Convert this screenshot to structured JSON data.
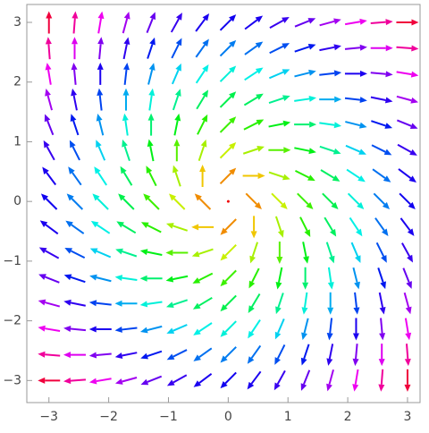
{
  "chart_data": {
    "type": "vector",
    "x": [
      -3,
      -2.57,
      -2.14,
      -1.71,
      -1.29,
      -0.86,
      -0.43,
      0,
      0.43,
      0.86,
      1.29,
      1.71,
      2.14,
      2.57,
      3
    ],
    "y": [
      -3,
      -2.57,
      -2.14,
      -1.71,
      -1.29,
      -0.86,
      -0.43,
      0,
      0.43,
      0.86,
      1.29,
      1.71,
      2.14,
      2.57,
      3
    ],
    "u": [
      [
        -6,
        -5.57,
        -5.14,
        -4.71,
        -4.29,
        -3.86,
        -3.43,
        -3,
        -2.57,
        -2.14,
        -1.71,
        -1.29,
        -0.86,
        -0.43,
        0
      ],
      [
        -5.57,
        -5.14,
        -4.71,
        -4.29,
        -3.86,
        -3.43,
        -3,
        -2.57,
        -2.14,
        -1.71,
        -1.29,
        -0.86,
        -0.43,
        0,
        0.43
      ],
      [
        -5.14,
        -4.71,
        -4.29,
        -3.86,
        -3.43,
        -3,
        -2.57,
        -2.14,
        -1.71,
        -1.29,
        -0.86,
        -0.43,
        0,
        0.43,
        0.86
      ],
      [
        -4.71,
        -4.29,
        -3.86,
        -3.43,
        -3,
        -2.57,
        -2.14,
        -1.71,
        -1.29,
        -0.86,
        -0.43,
        0,
        0.43,
        0.86,
        1.29
      ],
      [
        -4.29,
        -3.86,
        -3.43,
        -3,
        -2.57,
        -2.14,
        -1.71,
        -1.29,
        -0.86,
        -0.43,
        0,
        0.43,
        0.86,
        1.29,
        1.71
      ],
      [
        -3.86,
        -3.43,
        -3,
        -2.57,
        -2.14,
        -1.71,
        -1.29,
        -0.86,
        -0.43,
        0,
        0.43,
        0.86,
        1.29,
        1.71,
        2.14
      ],
      [
        -3.43,
        -3,
        -2.57,
        -2.14,
        -1.71,
        -1.29,
        -0.86,
        -0.43,
        0,
        0.43,
        0.86,
        1.29,
        1.71,
        2.14,
        2.57
      ],
      [
        -3,
        -2.57,
        -2.14,
        -1.71,
        -1.29,
        -0.86,
        -0.43,
        0,
        0.43,
        0.86,
        1.29,
        1.71,
        2.14,
        2.57,
        3
      ],
      [
        -2.57,
        -2.14,
        -1.71,
        -1.29,
        -0.86,
        -0.43,
        0,
        0.43,
        0.86,
        1.29,
        1.71,
        2.14,
        2.57,
        3,
        3.43
      ],
      [
        -2.14,
        -1.71,
        -1.29,
        -0.86,
        -0.43,
        0,
        0.43,
        0.86,
        1.29,
        1.71,
        2.14,
        2.57,
        3,
        3.43,
        3.86
      ],
      [
        -1.71,
        -1.29,
        -0.86,
        -0.43,
        0,
        0.43,
        0.86,
        1.29,
        1.71,
        2.14,
        2.57,
        3,
        3.43,
        3.86,
        4.29
      ],
      [
        -1.29,
        -0.86,
        -0.43,
        0,
        0.43,
        0.86,
        1.29,
        1.71,
        2.14,
        2.57,
        3,
        3.43,
        3.86,
        4.29,
        4.71
      ],
      [
        -0.86,
        -0.43,
        0,
        0.43,
        0.86,
        1.29,
        1.71,
        2.14,
        2.57,
        3,
        3.43,
        3.86,
        4.29,
        4.71,
        5.14
      ],
      [
        -0.43,
        0,
        0.43,
        0.86,
        1.29,
        1.71,
        2.14,
        2.57,
        3,
        3.43,
        3.86,
        4.29,
        4.71,
        5.14,
        5.57
      ],
      [
        0,
        0.43,
        0.86,
        1.29,
        1.71,
        2.14,
        2.57,
        3,
        3.43,
        3.86,
        4.29,
        4.71,
        5.14,
        5.57,
        6
      ]
    ],
    "v": [
      [
        0,
        -0.43,
        -0.86,
        -1.29,
        -1.71,
        -2.14,
        -2.57,
        -3,
        -3.43,
        -3.86,
        -4.29,
        -4.71,
        -5.14,
        -5.57,
        -6
      ],
      [
        0.43,
        0,
        -0.43,
        -0.86,
        -1.29,
        -1.71,
        -2.14,
        -2.57,
        -3,
        -3.43,
        -3.86,
        -4.29,
        -4.71,
        -5.14,
        -5.57
      ],
      [
        0.86,
        0.43,
        0,
        -0.43,
        -0.86,
        -1.29,
        -1.71,
        -2.14,
        -2.57,
        -3,
        -3.43,
        -3.86,
        -4.29,
        -4.71,
        -5.14
      ],
      [
        1.29,
        0.86,
        0.43,
        0,
        -0.43,
        -0.86,
        -1.29,
        -1.71,
        -2.14,
        -2.57,
        -3,
        -3.43,
        -3.86,
        -4.29,
        -4.71
      ],
      [
        1.71,
        1.29,
        0.86,
        0.43,
        0,
        -0.43,
        -0.86,
        -1.29,
        -1.71,
        -2.14,
        -2.57,
        -3,
        -3.43,
        -3.86,
        -4.29
      ],
      [
        2.14,
        1.71,
        1.29,
        0.86,
        0.43,
        0,
        -0.43,
        -0.86,
        -1.29,
        -1.71,
        -2.14,
        -2.57,
        -3,
        -3.43,
        -3.86
      ],
      [
        2.57,
        2.14,
        1.71,
        1.29,
        0.86,
        0.43,
        0,
        -0.43,
        -0.86,
        -1.29,
        -1.71,
        -2.14,
        -2.57,
        -3,
        -3.43
      ],
      [
        3,
        2.57,
        2.14,
        1.71,
        1.29,
        0.86,
        0.43,
        0,
        -0.43,
        -0.86,
        -1.29,
        -1.71,
        -2.14,
        -2.57,
        -3
      ],
      [
        3.43,
        3,
        2.57,
        2.14,
        1.71,
        1.29,
        0.86,
        0.43,
        0,
        -0.43,
        -0.86,
        -1.29,
        -1.71,
        -2.14,
        -2.57
      ],
      [
        3.86,
        3.43,
        3,
        2.57,
        2.14,
        1.71,
        1.29,
        0.86,
        0.43,
        0,
        -0.43,
        -0.86,
        -1.29,
        -1.71,
        -2.14
      ],
      [
        4.29,
        3.86,
        3.43,
        3,
        2.57,
        2.14,
        1.71,
        1.29,
        0.86,
        0.43,
        0,
        -0.43,
        -0.86,
        -1.29,
        -1.71
      ],
      [
        4.71,
        4.29,
        3.86,
        3.43,
        3,
        2.57,
        2.14,
        1.71,
        1.29,
        0.86,
        0.43,
        0,
        -0.43,
        -0.86,
        -1.29
      ],
      [
        5.14,
        4.71,
        4.29,
        3.86,
        3.43,
        3,
        2.57,
        2.14,
        1.71,
        1.29,
        0.86,
        0.43,
        0,
        -0.43,
        -0.86
      ],
      [
        5.57,
        5.14,
        4.71,
        4.29,
        3.86,
        3.43,
        3,
        2.57,
        2.14,
        1.71,
        1.29,
        0.86,
        0.43,
        0,
        -0.43
      ],
      [
        6,
        5.57,
        5.14,
        4.71,
        4.29,
        3.86,
        3.43,
        3,
        2.57,
        2.14,
        1.71,
        1.29,
        0.86,
        0.43,
        0
      ]
    ],
    "xlim": [
      -3.37,
      3.21
    ],
    "ylim": [
      -3.37,
      3.3
    ],
    "xticks": [
      {
        "value": -3,
        "label": "−3"
      },
      {
        "value": -2,
        "label": "−2"
      },
      {
        "value": -1,
        "label": "−1"
      },
      0,
      1,
      2,
      3
    ],
    "yticks": [
      {
        "value": -3,
        "label": "−3"
      },
      {
        "value": -2,
        "label": "−2"
      },
      {
        "value": -1,
        "label": "−1"
      },
      0,
      1,
      2,
      3
    ]
  }
}
